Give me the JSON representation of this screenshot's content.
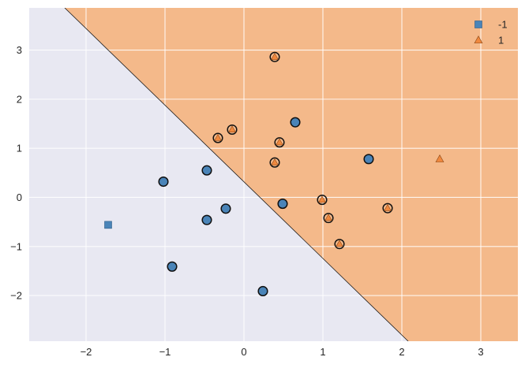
{
  "chart_data": {
    "type": "scatter",
    "title": "",
    "xlabel": "",
    "ylabel": "",
    "xlim": [
      -2.72,
      3.47
    ],
    "ylim": [
      -2.93,
      3.86
    ],
    "x_ticks": [
      {
        "value": -2,
        "label": "−2"
      },
      {
        "value": -1,
        "label": "−1"
      },
      {
        "value": 0,
        "label": "0"
      },
      {
        "value": 1,
        "label": "1"
      },
      {
        "value": 2,
        "label": "2"
      },
      {
        "value": 3,
        "label": "3"
      }
    ],
    "y_ticks": [
      {
        "value": -2,
        "label": "−2"
      },
      {
        "value": -1,
        "label": "−1"
      },
      {
        "value": 0,
        "label": "0"
      },
      {
        "value": 1,
        "label": "1"
      },
      {
        "value": 2,
        "label": "2"
      },
      {
        "value": 3,
        "label": "3"
      }
    ],
    "grid": true,
    "legend_position": "top-right",
    "decision_boundary": {
      "from": [
        -2.27,
        3.86
      ],
      "to": [
        2.08,
        -2.93
      ]
    },
    "regions": [
      {
        "class": "-1",
        "color": "#e8e8f2"
      },
      {
        "class": "1",
        "color": "#f4b98a"
      }
    ],
    "series": [
      {
        "name": "-1",
        "marker": "square",
        "color": "#4a84b8",
        "points": [
          [
            -1.72,
            -0.56
          ]
        ]
      },
      {
        "name": "1",
        "marker": "triangle",
        "color": "#f0883e",
        "points": [
          [
            2.48,
            0.78
          ]
        ]
      }
    ],
    "circled_points": [
      {
        "class": "-1",
        "points": [
          [
            -1.02,
            0.32
          ],
          [
            -0.47,
            0.55
          ],
          [
            -0.47,
            -0.46
          ],
          [
            -0.23,
            -0.23
          ],
          [
            -0.91,
            -1.41
          ],
          [
            0.24,
            -1.91
          ],
          [
            0.49,
            -0.13
          ],
          [
            0.65,
            1.53
          ],
          [
            1.58,
            0.78
          ]
        ]
      },
      {
        "class": "1",
        "points": [
          [
            0.39,
            2.86
          ],
          [
            -0.33,
            1.21
          ],
          [
            -0.15,
            1.38
          ],
          [
            0.45,
            1.12
          ],
          [
            0.39,
            0.71
          ],
          [
            0.99,
            -0.05
          ],
          [
            1.07,
            -0.42
          ],
          [
            1.21,
            -0.95
          ],
          [
            1.82,
            -0.22
          ]
        ]
      }
    ]
  }
}
